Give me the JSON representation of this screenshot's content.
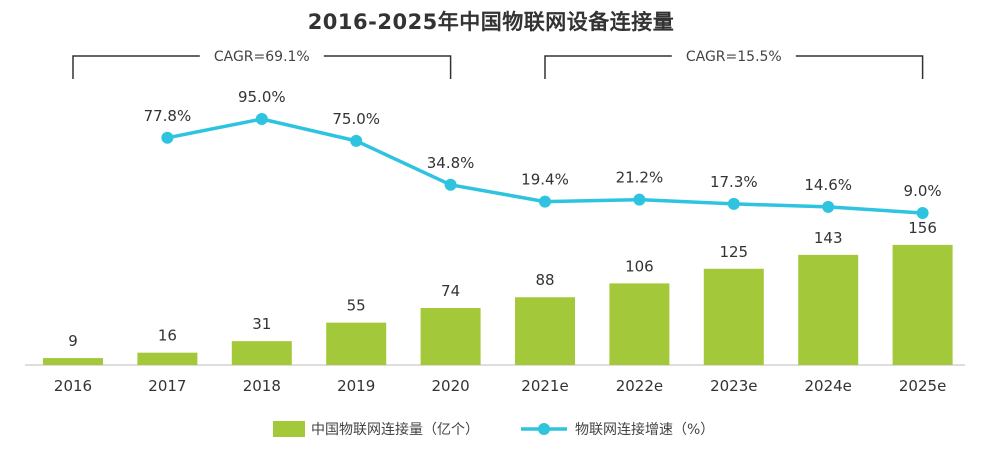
{
  "chart_data": {
    "type": "bar+line",
    "title": "2016-2025年中国物联网设备连接量",
    "categories": [
      "2016",
      "2017",
      "2018",
      "2019",
      "2020",
      "2021e",
      "2022e",
      "2023e",
      "2024e",
      "2025e"
    ],
    "series": [
      {
        "name": "中国物联网连接量（亿个）",
        "type": "bar",
        "values": [
          9,
          16,
          31,
          55,
          74,
          88,
          106,
          125,
          143,
          156
        ],
        "labels": [
          "9",
          "16",
          "31",
          "55",
          "74",
          "88",
          "106",
          "125",
          "143",
          "156"
        ],
        "color": "#a3c93a"
      },
      {
        "name": "物联网连接增速（%）",
        "type": "line",
        "values": [
          null,
          77.8,
          95.0,
          75.0,
          34.8,
          19.4,
          21.2,
          17.3,
          14.6,
          9.0
        ],
        "labels": [
          "",
          "77.8%",
          "95.0%",
          "75.0%",
          "34.8%",
          "19.4%",
          "21.2%",
          "17.3%",
          "14.6%",
          "9.0%"
        ],
        "color": "#2ec4e0"
      }
    ],
    "annotations": [
      {
        "text": "CAGR=69.1%",
        "from": "2016",
        "to": "2020"
      },
      {
        "text": "CAGR=15.5%",
        "from": "2021e",
        "to": "2025e"
      }
    ],
    "legend": "bottom",
    "grid": false
  }
}
